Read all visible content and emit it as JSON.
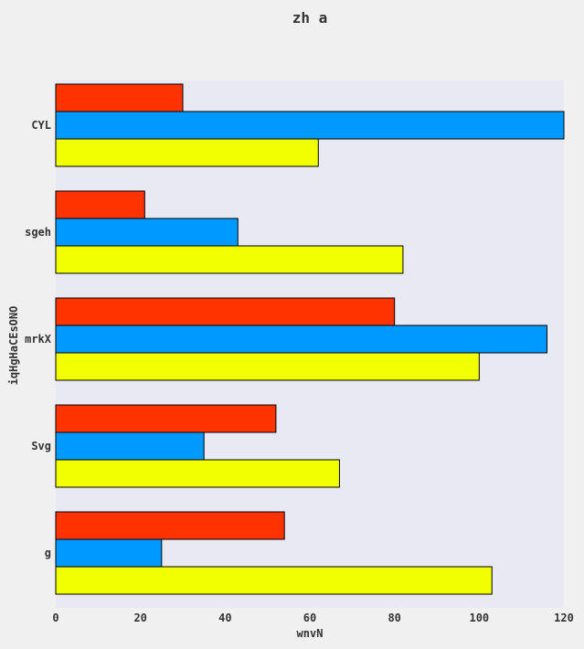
{
  "chart_data": {
    "type": "bar",
    "orientation": "horizontal",
    "title": "zh a",
    "xlabel": "wnvN",
    "ylabel": "iqHgHaCEsONO",
    "categories": [
      "CYL",
      "sgeh",
      "mrkX",
      "Svg",
      "g"
    ],
    "series": [
      {
        "color": "#ff3300",
        "values": [
          30,
          21,
          80,
          52,
          54
        ]
      },
      {
        "color": "#0099ff",
        "values": [
          120,
          43,
          116,
          35,
          25
        ]
      },
      {
        "color": "#f2ff00",
        "values": [
          62,
          82,
          100,
          67,
          103
        ]
      }
    ],
    "xlim": [
      0,
      120
    ],
    "xticks": [
      "0",
      "20",
      "40",
      "60",
      "80",
      "100",
      "120"
    ],
    "grid": false,
    "legend": "none",
    "plot_background": "#e9e9f3",
    "figure_background": "#f0f0f0"
  }
}
